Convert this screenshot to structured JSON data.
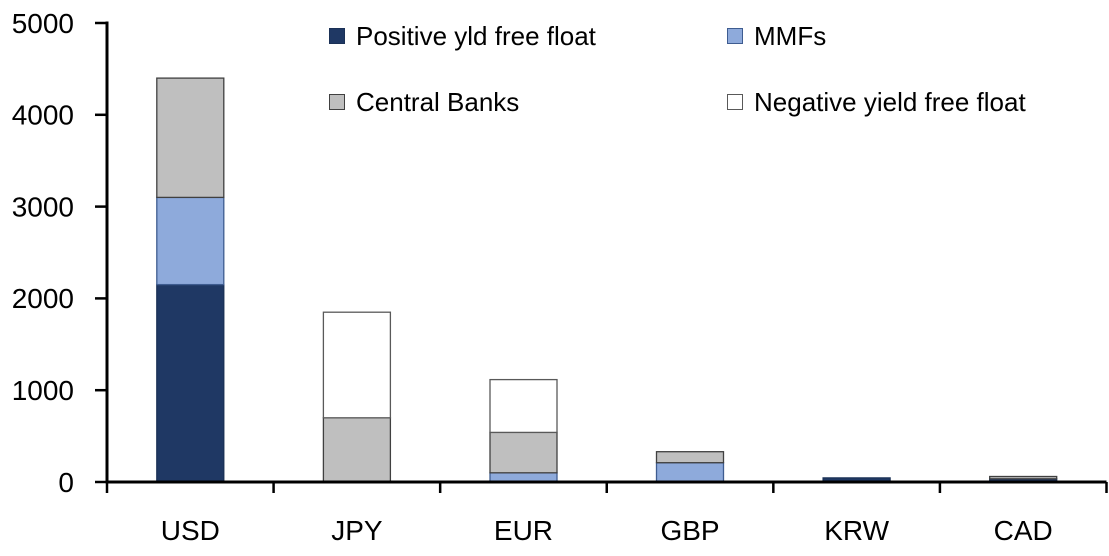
{
  "chart_data": {
    "type": "bar",
    "stacked": true,
    "title": "",
    "xlabel": "",
    "ylabel": "",
    "categories": [
      "USD",
      "JPY",
      "EUR",
      "GBP",
      "KRW",
      "CAD"
    ],
    "series": [
      {
        "name": "Positive yld free float",
        "color": "#1F3864",
        "border": "#1B3156",
        "values": [
          2150,
          0,
          0,
          0,
          45,
          35
        ]
      },
      {
        "name": "MMFs",
        "color": "#8EAADB",
        "border": "#3E5C90",
        "values": [
          950,
          0,
          100,
          210,
          0,
          0
        ]
      },
      {
        "name": "Central Banks",
        "color": "#BFBFBF",
        "border": "#404040",
        "values": [
          1300,
          700,
          440,
          120,
          0,
          25
        ]
      },
      {
        "name": "Negative yield free float",
        "color": "#FFFFFF",
        "border": "#595959",
        "values": [
          0,
          1150,
          575,
          0,
          0,
          0
        ]
      }
    ],
    "ylim": [
      0,
      5000
    ],
    "yticks": [
      0,
      1000,
      2000,
      3000,
      4000,
      5000
    ],
    "grid": false,
    "legend_position": "top",
    "axis_color": "#000000",
    "text_color": "#000000",
    "background_color": "#FFFFFF"
  }
}
